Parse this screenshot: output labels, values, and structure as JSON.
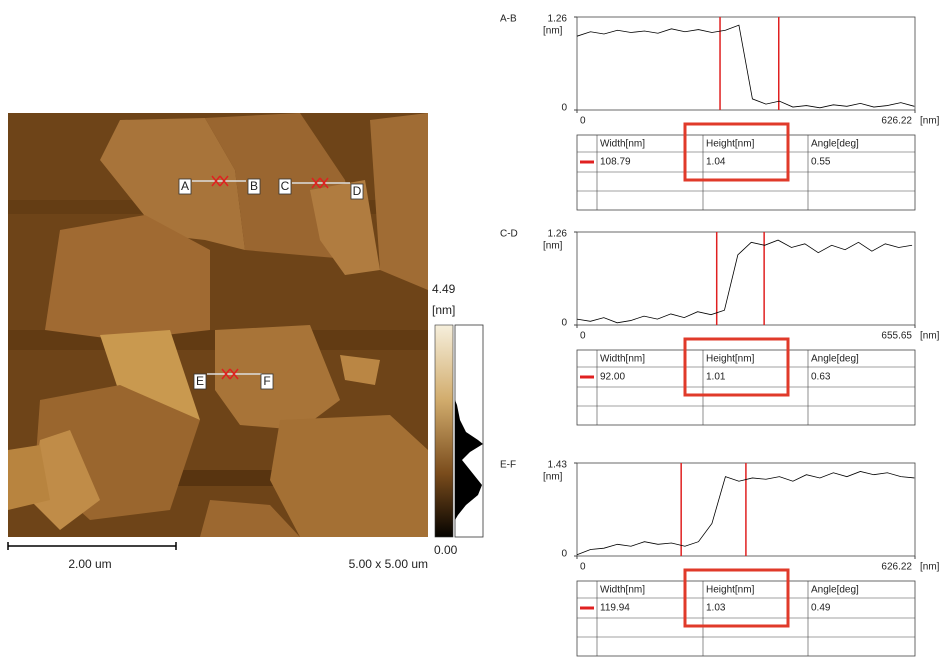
{
  "image": {
    "markers": [
      "A",
      "B",
      "C",
      "D",
      "E",
      "F"
    ],
    "colorbar_max": "4.49",
    "colorbar_unit": "[nm]",
    "colorbar_min": "0.00",
    "scale_bar": "2.00 um",
    "scan_size": "5.00 x 5.00 um"
  },
  "chart_data": [
    {
      "type": "line",
      "title": "A-B",
      "y_label": "[nm]",
      "x_label": "[nm]",
      "color": "#000000",
      "xlim": [
        0,
        626.22
      ],
      "xticks": [
        0,
        626.22
      ],
      "ylim": [
        0,
        1.26
      ],
      "yticks": [
        0,
        1.26
      ],
      "x": [
        0,
        25,
        50,
        75,
        100,
        125,
        150,
        175,
        200,
        225,
        250,
        275,
        300,
        325,
        350,
        375,
        400,
        425,
        450,
        475,
        500,
        525,
        550,
        575,
        600,
        625
      ],
      "values": [
        1.0,
        1.06,
        1.03,
        1.08,
        1.05,
        1.07,
        1.04,
        1.1,
        1.06,
        1.09,
        1.05,
        1.08,
        1.15,
        0.15,
        0.08,
        0.12,
        0.04,
        0.06,
        0.03,
        0.07,
        0.05,
        0.09,
        0.04,
        0.06,
        0.1,
        0.05
      ],
      "cursors": [
        265,
        373.79
      ],
      "cursor_color": "#e02020",
      "table": {
        "columns": [
          "Width[nm]",
          "Height[nm]",
          "Angle[deg]"
        ],
        "rows": [
          [
            "108.79",
            "1.04",
            "0.55"
          ]
        ]
      }
    },
    {
      "type": "line",
      "title": "C-D",
      "y_label": "[nm]",
      "x_label": "[nm]",
      "color": "#000000",
      "xlim": [
        0,
        655.65
      ],
      "xticks": [
        0,
        655.65
      ],
      "ylim": [
        0,
        1.26
      ],
      "yticks": [
        0,
        1.26
      ],
      "x": [
        0,
        26,
        52,
        78,
        104,
        130,
        156,
        182,
        208,
        234,
        260,
        286,
        312,
        338,
        364,
        390,
        416,
        442,
        468,
        494,
        520,
        546,
        572,
        598,
        624,
        650
      ],
      "values": [
        0.08,
        0.05,
        0.1,
        0.03,
        0.06,
        0.12,
        0.08,
        0.15,
        0.1,
        0.18,
        0.14,
        0.2,
        0.95,
        1.12,
        1.08,
        1.15,
        1.05,
        1.1,
        0.98,
        1.08,
        1.02,
        1.12,
        1.0,
        1.1,
        1.05,
        1.08
      ],
      "cursors": [
        271,
        363
      ],
      "cursor_color": "#e02020",
      "table": {
        "columns": [
          "Width[nm]",
          "Height[nm]",
          "Angle[deg]"
        ],
        "rows": [
          [
            "92.00",
            "1.01",
            "0.63"
          ]
        ]
      }
    },
    {
      "type": "line",
      "title": "E-F",
      "y_label": "[nm]",
      "x_label": "[nm]",
      "color": "#000000",
      "xlim": [
        0,
        626.22
      ],
      "xticks": [
        0,
        626.22
      ],
      "ylim": [
        0,
        1.43
      ],
      "yticks": [
        0,
        1.43
      ],
      "x": [
        0,
        25,
        50,
        75,
        100,
        125,
        150,
        175,
        200,
        225,
        250,
        275,
        300,
        325,
        350,
        375,
        400,
        425,
        450,
        475,
        500,
        525,
        550,
        575,
        600,
        625
      ],
      "values": [
        0.02,
        0.1,
        0.12,
        0.18,
        0.15,
        0.22,
        0.18,
        0.2,
        0.15,
        0.22,
        0.5,
        1.22,
        1.15,
        1.2,
        1.18,
        1.22,
        1.15,
        1.25,
        1.2,
        1.28,
        1.22,
        1.3,
        1.25,
        1.28,
        1.22,
        1.2
      ],
      "cursors": [
        193,
        312.94
      ],
      "cursor_color": "#e02020",
      "table": {
        "columns": [
          "Width[nm]",
          "Height[nm]",
          "Angle[deg]"
        ],
        "rows": [
          [
            "119.94",
            "1.03",
            "0.49"
          ]
        ]
      }
    }
  ]
}
